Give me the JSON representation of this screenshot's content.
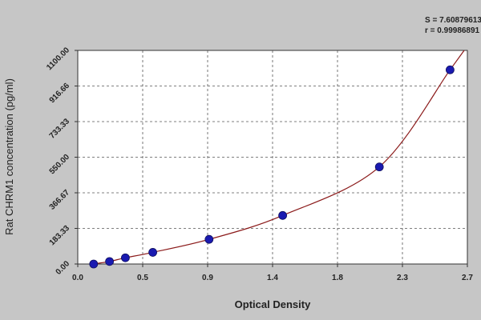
{
  "chart_data": {
    "type": "scatter",
    "xlabel": "Optical Density",
    "ylabel": "Rat CHRM1 concentration (pg/ml)",
    "xlim": [
      0.0,
      2.7
    ],
    "ylim": [
      0.0,
      1100.0
    ],
    "x_ticks": [
      "0.0",
      "0.5",
      "0.9",
      "1.4",
      "1.8",
      "2.3",
      "2.7"
    ],
    "x_tick_values": [
      0.0,
      0.45,
      0.9,
      1.35,
      1.8,
      2.25,
      2.7
    ],
    "y_ticks": [
      "0.00",
      "183.33",
      "366.67",
      "550.00",
      "733.33",
      "916.66",
      "1100.00"
    ],
    "y_tick_values": [
      0.0,
      183.33,
      366.67,
      550.0,
      733.33,
      916.66,
      1100.0
    ],
    "grid": true,
    "stats": [
      "S = 7.60879613",
      "r = 0.99986891"
    ],
    "marker_color": "#1a1ab0",
    "curve_color": "#8b1a1a",
    "points": [
      {
        "x": 0.11,
        "y": 0
      },
      {
        "x": 0.22,
        "y": 13
      },
      {
        "x": 0.33,
        "y": 32
      },
      {
        "x": 0.52,
        "y": 60
      },
      {
        "x": 0.91,
        "y": 127
      },
      {
        "x": 1.42,
        "y": 250
      },
      {
        "x": 2.09,
        "y": 500
      },
      {
        "x": 2.58,
        "y": 1000
      }
    ]
  }
}
